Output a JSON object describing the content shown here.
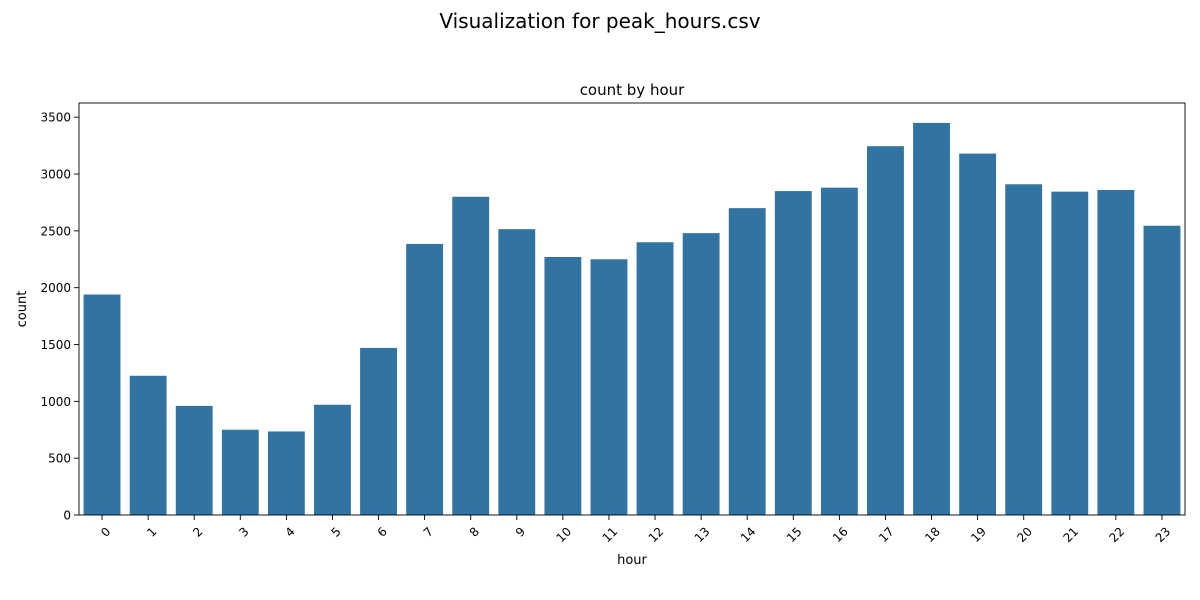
{
  "figure": {
    "suptitle": "Visualization for peak_hours.csv"
  },
  "chart_data": {
    "type": "bar",
    "title": "count by hour",
    "xlabel": "hour",
    "ylabel": "count",
    "categories": [
      "0",
      "1",
      "2",
      "3",
      "4",
      "5",
      "6",
      "7",
      "8",
      "9",
      "10",
      "11",
      "12",
      "13",
      "14",
      "15",
      "16",
      "17",
      "18",
      "19",
      "20",
      "21",
      "22",
      "23"
    ],
    "values": [
      1940,
      1225,
      960,
      750,
      735,
      970,
      1470,
      2385,
      2800,
      2515,
      2270,
      2250,
      2400,
      2480,
      2700,
      2850,
      2880,
      3245,
      3450,
      3180,
      2910,
      2845,
      2860,
      2545
    ],
    "ylim": [
      0,
      3625
    ],
    "yticks": [
      0,
      500,
      1000,
      1500,
      2000,
      2500,
      3000,
      3500
    ],
    "bar_color": "#3274a1",
    "grid": false,
    "legend": "none",
    "xtick_rotation_deg": 45
  }
}
